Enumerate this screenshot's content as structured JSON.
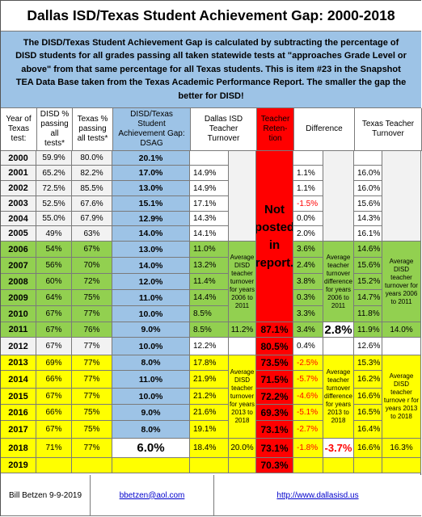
{
  "title": "Dallas ISD/Texas Student Achievement Gap: 2000-2018",
  "description": "The DISD/Texas Student Achievement Gap is calculated by subtracting the percentage of DISD students for all grades passing all taken statewide tests at \"approaches Grade Level or above\" from that same percentage for all Texas students.  This is item #23 in the Snapshot TEA Data Base taken from the Texas Academic Performance Report.  The smaller the gap the better for DISD!",
  "headers": {
    "year": "Year of Texas test:",
    "disd": "DISD % passing all tests*",
    "texas": "Texas % passing all tests*",
    "dsag": "DISD/Texas Student Achievement Gap: DSAG",
    "disd_turnover": "Dallas ISD Teacher Turnover",
    "retention": "Teacher Reten-tion",
    "difference": "Difference",
    "tx_turnover": "Texas Teacher Turnover"
  },
  "not_posted": "Not posted in report.",
  "rows": [
    {
      "year": "2000",
      "disd": "59.9%",
      "texas": "80.0%",
      "dsag": "20.1%",
      "dto": "",
      "ret": "",
      "diff": "",
      "tto": ""
    },
    {
      "year": "2001",
      "disd": "65.2%",
      "texas": "82.2%",
      "dsag": "17.0%",
      "dto": "14.9%",
      "ret": "",
      "diff": "1.1%",
      "tto": "16.0%"
    },
    {
      "year": "2002",
      "disd": "72.5%",
      "texas": "85.5%",
      "dsag": "13.0%",
      "dto": "14.9%",
      "ret": "",
      "diff": "1.1%",
      "tto": "16.0%"
    },
    {
      "year": "2003",
      "disd": "52.5%",
      "texas": "67.6%",
      "dsag": "15.1%",
      "dto": "17.1%",
      "ret": "",
      "diff": "-1.5%",
      "tto": "15.6%"
    },
    {
      "year": "2004",
      "disd": "55.0%",
      "texas": "67.9%",
      "dsag": "12.9%",
      "dto": "14.3%",
      "ret": "",
      "diff": "0.0%",
      "tto": "14.3%"
    },
    {
      "year": "2005",
      "disd": "49%",
      "texas": "63%",
      "dsag": "14.0%",
      "dto": "14.1%",
      "ret": "",
      "diff": "2.0%",
      "tto": "16.1%"
    },
    {
      "year": "2006",
      "disd": "54%",
      "texas": "67%",
      "dsag": "13.0%",
      "dto": "11.0%",
      "ret": "",
      "diff": "3.6%",
      "tto": "14.6%"
    },
    {
      "year": "2007",
      "disd": "56%",
      "texas": "70%",
      "dsag": "14.0%",
      "dto": "13.2%",
      "ret": "",
      "diff": "2.4%",
      "tto": "15.6%"
    },
    {
      "year": "2008",
      "disd": "60%",
      "texas": "72%",
      "dsag": "12.0%",
      "dto": "11.4%",
      "ret": "",
      "diff": "3.8%",
      "tto": "15.2%"
    },
    {
      "year": "2009",
      "disd": "64%",
      "texas": "75%",
      "dsag": "11.0%",
      "dto": "14.4%",
      "ret": "",
      "diff": "0.3%",
      "tto": "14.7%"
    },
    {
      "year": "2010",
      "disd": "67%",
      "texas": "77%",
      "dsag": "10.0%",
      "dto": "8.5%",
      "ret": "",
      "diff": "3.3%",
      "tto": "11.8%"
    },
    {
      "year": "2011",
      "disd": "67%",
      "texas": "76%",
      "dsag": "9.0%",
      "dto": "8.5%",
      "ret": "87.1%",
      "diff": "3.4%",
      "tto": "11.9%"
    },
    {
      "year": "2012",
      "disd": "67%",
      "texas": "77%",
      "dsag": "10.0%",
      "dto": "12.2%",
      "ret": "80.5%",
      "diff": "0.4%",
      "tto": "12.6%"
    },
    {
      "year": "2013",
      "disd": "69%",
      "texas": "77%",
      "dsag": "8.0%",
      "dto": "17.8%",
      "ret": "73.5%",
      "diff": "-2.5%",
      "tto": "15.3%"
    },
    {
      "year": "2014",
      "disd": "66%",
      "texas": "77%",
      "dsag": "11.0%",
      "dto": "21.9%",
      "ret": "71.5%",
      "diff": "-5.7%",
      "tto": "16.2%"
    },
    {
      "year": "2015",
      "disd": "67%",
      "texas": "77%",
      "dsag": "10.0%",
      "dto": "21.2%",
      "ret": "72.2%",
      "diff": "-4.6%",
      "tto": "16.6%"
    },
    {
      "year": "2016",
      "disd": "66%",
      "texas": "75%",
      "dsag": "9.0%",
      "dto": "21.6%",
      "ret": "69.3%",
      "diff": "-5.1%",
      "tto": "16.5%"
    },
    {
      "year": "2017",
      "disd": "67%",
      "texas": "75%",
      "dsag": "8.0%",
      "dto": "19.1%",
      "ret": "73.1%",
      "diff": "-2.7%",
      "tto": "16.4%"
    },
    {
      "year": "2018",
      "disd": "71%",
      "texas": "77%",
      "dsag": "6.0%",
      "dto": "18.4%",
      "ret": "73.1%",
      "diff": "-1.8%",
      "tto": "16.6%"
    },
    {
      "year": "2019",
      "disd": "",
      "texas": "",
      "dsag": "",
      "dto": "",
      "ret": "70.3%",
      "diff": "",
      "tto": ""
    }
  ],
  "avg_notes": {
    "disd_2006_2011": "Average DISD teacher turnover for years 2006 to 2011",
    "diff_2006_2011": "Average teacher turnover difference for years 2006 to 2011",
    "tx_2006_2011": "Average DISD teacher turnover for years 2006 to 2011",
    "disd_2013_2018": "Average DISD teacher turnover for years 2013 to 2018",
    "diff_2013_2018": "Average teacher turnover difference for years 2013 to 2018",
    "tx_2013_2018": "Average DISD teacher turnove r for years 2013 to 2018"
  },
  "averages": {
    "disd_2011": "11.2%",
    "diff_2011": "2.8%",
    "tx_2011": "14.0%",
    "disd_2018": "20.0%",
    "diff_2018": "-3.7%",
    "tx_2018": "16.3%"
  },
  "footer": {
    "author": "Bill Betzen 9-9-2019",
    "email": "bbetzen@aol.com",
    "url": "http://www.dallasisd.us"
  },
  "colors": {
    "title_bg": "#ffffff",
    "description_bg": "#9dc3e6",
    "green": "#92d050",
    "yellow": "#ffff00",
    "red": "#ff0000",
    "blue": "#9dc3e6"
  }
}
